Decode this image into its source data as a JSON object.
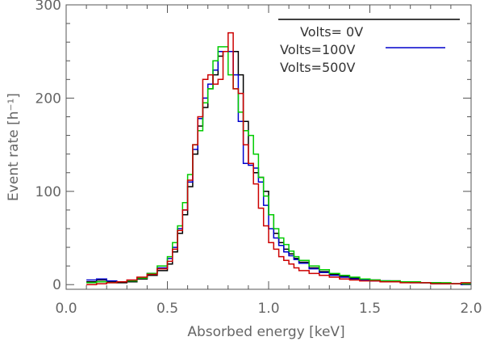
{
  "chart_data": {
    "type": "line",
    "style": "step-histogram",
    "xlabel": "Absorbed energy [keV]",
    "ylabel": "Event rate [h⁻¹]",
    "xlim": [
      0.0,
      2.0
    ],
    "ylim": [
      -5,
      300
    ],
    "x_ticks": [
      0.0,
      0.5,
      1.0,
      1.5,
      2.0
    ],
    "x_tick_labels": [
      "0.0",
      "0.5",
      "1.0",
      "1.5",
      "2.0"
    ],
    "y_ticks": [
      0,
      100,
      200,
      300
    ],
    "y_tick_labels": [
      "0",
      "100",
      "200",
      "300"
    ],
    "bin_edges": [
      0.1,
      0.15,
      0.2,
      0.25,
      0.3,
      0.35,
      0.4,
      0.45,
      0.5,
      0.525,
      0.55,
      0.575,
      0.6,
      0.625,
      0.65,
      0.675,
      0.7,
      0.725,
      0.75,
      0.775,
      0.8,
      0.825,
      0.85,
      0.875,
      0.9,
      0.925,
      0.95,
      0.975,
      1.0,
      1.025,
      1.05,
      1.075,
      1.1,
      1.125,
      1.15,
      1.2,
      1.25,
      1.3,
      1.35,
      1.4,
      1.45,
      1.5,
      1.55,
      1.6,
      1.65,
      1.7,
      1.75,
      1.8,
      1.85,
      1.9,
      1.95,
      2.0
    ],
    "legend_position": "top-right",
    "series": [
      {
        "name": "Volts= 0V",
        "color": "#000000",
        "values": [
          3,
          5,
          3,
          2,
          3,
          6,
          10,
          15,
          22,
          35,
          55,
          75,
          105,
          140,
          170,
          190,
          210,
          225,
          245,
          250,
          250,
          250,
          225,
          175,
          130,
          120,
          115,
          100,
          75,
          55,
          45,
          38,
          33,
          28,
          24,
          18,
          14,
          11,
          9,
          7,
          6,
          5,
          4,
          4,
          3,
          3,
          2,
          2,
          1,
          1,
          1
        ]
      },
      {
        "name": "Volts=100V",
        "color": "#0000cc",
        "values": [
          5,
          6,
          4,
          3,
          4,
          7,
          12,
          18,
          28,
          40,
          60,
          80,
          110,
          145,
          178,
          200,
          215,
          230,
          250,
          250,
          250,
          225,
          175,
          130,
          128,
          125,
          110,
          85,
          60,
          50,
          42,
          35,
          31,
          27,
          23,
          17,
          13,
          10,
          8,
          6,
          5,
          4,
          4,
          3,
          3,
          2,
          2,
          1,
          1,
          1,
          0
        ]
      },
      {
        "name": "Volts=500V",
        "color": "#00cc00",
        "values": [
          2,
          3,
          2,
          3,
          4,
          7,
          12,
          20,
          30,
          45,
          63,
          88,
          118,
          150,
          165,
          195,
          210,
          240,
          255,
          255,
          225,
          210,
          185,
          165,
          160,
          140,
          115,
          95,
          75,
          60,
          50,
          43,
          36,
          30,
          26,
          20,
          16,
          12,
          10,
          8,
          6,
          5,
          4,
          4,
          3,
          3,
          2,
          2,
          2,
          1,
          1
        ]
      },
      {
        "name": "",
        "color": "#cc0000",
        "values": [
          0,
          1,
          2,
          3,
          5,
          8,
          11,
          17,
          25,
          38,
          58,
          80,
          112,
          150,
          180,
          220,
          225,
          215,
          220,
          250,
          270,
          210,
          205,
          150,
          130,
          108,
          82,
          63,
          45,
          38,
          30,
          26,
          22,
          18,
          15,
          12,
          10,
          8,
          6,
          5,
          4,
          4,
          3,
          3,
          2,
          2,
          2,
          1,
          1,
          1,
          2
        ]
      }
    ],
    "legend_entries": [
      {
        "label": "Volts= 0V",
        "color": "#000000"
      },
      {
        "label": "Volts=100V",
        "color": "#0000cc"
      },
      {
        "label": "Volts=500V",
        "color": "#00cc00"
      }
    ]
  }
}
